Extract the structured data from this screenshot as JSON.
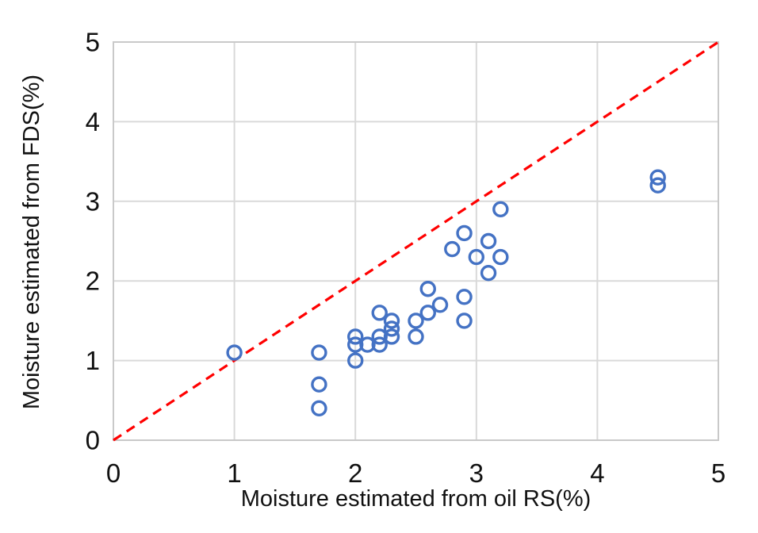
{
  "chart_data": {
    "type": "scatter",
    "xlabel": "Moisture estimated from oil RS(%)",
    "ylabel": "Moisture estimated from FDS(%)",
    "xlim": [
      0,
      5
    ],
    "ylim": [
      0,
      5
    ],
    "xticks": [
      "0",
      "1",
      "2",
      "3",
      "4",
      "5"
    ],
    "yticks": [
      "0",
      "1",
      "2",
      "3",
      "4",
      "5"
    ],
    "grid": true,
    "legend": "none",
    "series": [
      {
        "marker": "open-circle",
        "color": "#4472C4",
        "points": [
          [
            1.0,
            1.1
          ],
          [
            1.7,
            1.1
          ],
          [
            1.7,
            0.7
          ],
          [
            1.7,
            0.4
          ],
          [
            2.0,
            1.3
          ],
          [
            2.0,
            1.2
          ],
          [
            2.0,
            1.0
          ],
          [
            2.1,
            1.2
          ],
          [
            2.2,
            1.6
          ],
          [
            2.2,
            1.3
          ],
          [
            2.2,
            1.2
          ],
          [
            2.3,
            1.5
          ],
          [
            2.3,
            1.4
          ],
          [
            2.3,
            1.3
          ],
          [
            2.5,
            1.5
          ],
          [
            2.5,
            1.3
          ],
          [
            2.6,
            1.9
          ],
          [
            2.6,
            1.6
          ],
          [
            2.7,
            1.7
          ],
          [
            2.8,
            2.4
          ],
          [
            2.9,
            2.6
          ],
          [
            2.9,
            1.8
          ],
          [
            2.9,
            1.5
          ],
          [
            3.0,
            2.3
          ],
          [
            3.1,
            2.5
          ],
          [
            3.1,
            2.1
          ],
          [
            3.2,
            2.9
          ],
          [
            3.2,
            2.3
          ],
          [
            4.5,
            3.3
          ],
          [
            4.5,
            3.2
          ]
        ]
      }
    ],
    "identity_line": {
      "style": "dashed",
      "color": "#FF0000",
      "from": [
        0,
        0
      ],
      "to": [
        5,
        5
      ]
    },
    "colors": {
      "gridline": "#D9D9D9",
      "plot_border": "#C9C9C9",
      "axis_text": "#111111",
      "background": "#FFFFFF"
    }
  }
}
